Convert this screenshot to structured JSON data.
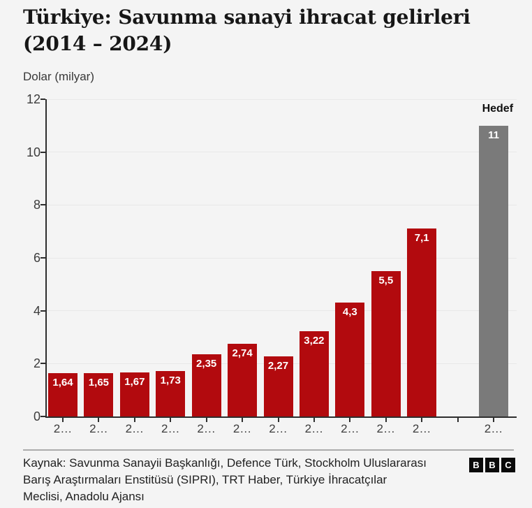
{
  "header": {
    "title_lines": [
      "Türkiye: Savunma sanayi ihracat gelirleri",
      "(2014 – 2024)"
    ],
    "unit_label": "Dolar (milyar)"
  },
  "chart_data": {
    "type": "bar",
    "title": "Türkiye: Savunma sanayi ihracat gelirleri (2014 – 2024)",
    "ylabel": "Dolar (milyar)",
    "ylim": [
      0,
      12
    ],
    "yticks": [
      0,
      2,
      4,
      6,
      8,
      10,
      12
    ],
    "grid": true,
    "colors": {
      "export": "#b20a0e",
      "target": "#7a7a7a"
    },
    "bars": [
      {
        "label": "2…",
        "value": 1.64,
        "display": "1,64",
        "series": "export"
      },
      {
        "label": "2…",
        "value": 1.65,
        "display": "1,65",
        "series": "export"
      },
      {
        "label": "2…",
        "value": 1.67,
        "display": "1,67",
        "series": "export"
      },
      {
        "label": "2…",
        "value": 1.73,
        "display": "1,73",
        "series": "export"
      },
      {
        "label": "2…",
        "value": 2.35,
        "display": "2,35",
        "series": "export"
      },
      {
        "label": "2…",
        "value": 2.74,
        "display": "2,74",
        "series": "export"
      },
      {
        "label": "2…",
        "value": 2.27,
        "display": "2,27",
        "series": "export"
      },
      {
        "label": "2…",
        "value": 3.22,
        "display": "3,22",
        "series": "export"
      },
      {
        "label": "2…",
        "value": 4.3,
        "display": "4,3",
        "series": "export"
      },
      {
        "label": "2…",
        "value": 5.5,
        "display": "5,5",
        "series": "export"
      },
      {
        "label": "2…",
        "value": 7.1,
        "display": "7,1",
        "series": "export"
      },
      {
        "label": "",
        "value": null,
        "display": "",
        "series": ""
      },
      {
        "label": "2…",
        "value": 11,
        "display": "11",
        "series": "target",
        "annotation": "Hedef"
      }
    ]
  },
  "footer": {
    "source_lines": [
      "Kaynak: Savunma Sanayii Başkanlığı, Defence Türk, Stockholm Uluslararası",
      "Barış Araştırmaları Enstitüsü (SIPRI), TRT Haber, Türkiye İhracatçılar",
      "Meclisi, Anadolu Ajansı"
    ],
    "logo_letters": [
      "B",
      "B",
      "C"
    ]
  }
}
